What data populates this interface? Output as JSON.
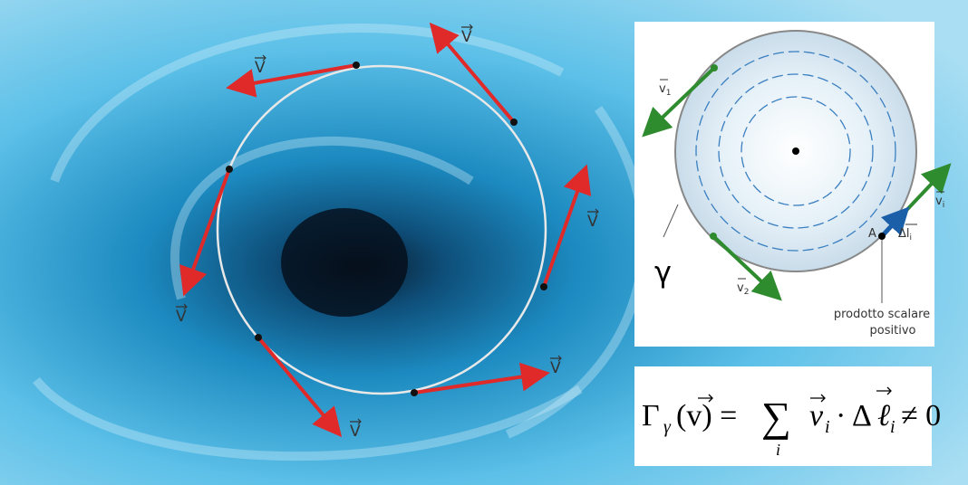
{
  "left_panel": {
    "vector_labels": [
      "V",
      "V",
      "V",
      "V",
      "V",
      "V"
    ]
  },
  "right_panel": {
    "v1": {
      "symbol": "v",
      "subscript": "1"
    },
    "v2": {
      "symbol": "v",
      "subscript": "2"
    },
    "vi": {
      "symbol": "v",
      "subscript": "i"
    },
    "delta_l": {
      "symbol": "Δl",
      "subscript": "i"
    },
    "point": "A",
    "curve": "γ",
    "note": [
      "prodotto scalare",
      "positivo"
    ]
  },
  "formula": {
    "lhs": "Γ",
    "lhs_subscript": "γ",
    "argument": "(v) =",
    "sum": "∑",
    "sum_index": "i",
    "term": "v",
    "term_subscript": "i",
    "operator": "· Δ",
    "term2": "ℓ",
    "term2_subscript": "i",
    "rhs": "≠ 0"
  }
}
